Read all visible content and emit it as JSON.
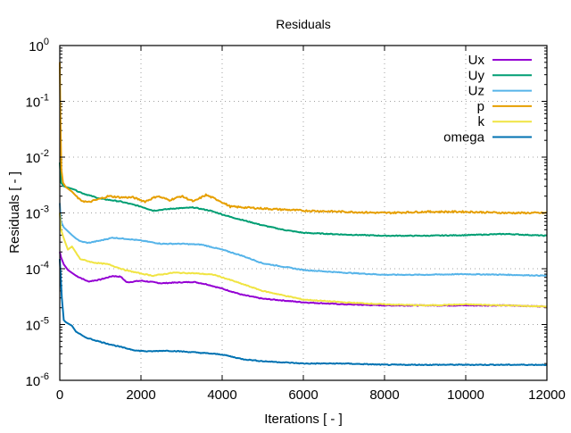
{
  "chart_data": {
    "type": "line",
    "title": "Residuals",
    "xlabel": "Iterations [ - ]",
    "ylabel": "Residuals [ - ]",
    "xlim": [
      0,
      12000
    ],
    "ylim": [
      1e-06,
      1
    ],
    "yscale": "log",
    "grid": true,
    "legend_position": "top-right",
    "x_ticks": [
      {
        "value": 0,
        "label": "0"
      },
      {
        "value": 2000,
        "label": "2000"
      },
      {
        "value": 4000,
        "label": "4000"
      },
      {
        "value": 6000,
        "label": "6000"
      },
      {
        "value": 8000,
        "label": "8000"
      },
      {
        "value": 10000,
        "label": "10000"
      },
      {
        "value": 12000,
        "label": "12000"
      }
    ],
    "y_ticks": [
      {
        "exp": 0,
        "base": "10",
        "sup": "0"
      },
      {
        "exp": -1,
        "base": "10",
        "sup": "-1"
      },
      {
        "exp": -2,
        "base": "10",
        "sup": "-2"
      },
      {
        "exp": -3,
        "base": "10",
        "sup": "-3"
      },
      {
        "exp": -4,
        "base": "10",
        "sup": "-4"
      },
      {
        "exp": -5,
        "base": "10",
        "sup": "-5"
      },
      {
        "exp": -6,
        "base": "10",
        "sup": "-6"
      }
    ],
    "series": [
      {
        "name": "Ux",
        "color": "#9400d3",
        "x": [
          0,
          30,
          100,
          200,
          400,
          700,
          1000,
          1300,
          1500,
          1650,
          2000,
          2500,
          3000,
          3300,
          3600,
          4000,
          4500,
          5000,
          5500,
          6000,
          7000,
          8000,
          9000,
          10000,
          11000,
          12000
        ],
        "y": [
          0.0002,
          0.00016,
          0.00012,
          9.5e-05,
          7.5e-05,
          5.9e-05,
          6.4e-05,
          7.4e-05,
          7.2e-05,
          5.7e-05,
          6.1e-05,
          5.5e-05,
          5.7e-05,
          5.8e-05,
          5.3e-05,
          4.4e-05,
          3.4e-05,
          2.9e-05,
          2.7e-05,
          2.5e-05,
          2.3e-05,
          2.2e-05,
          2.2e-05,
          2.2e-05,
          2.2e-05,
          2.1e-05
        ]
      },
      {
        "name": "Uy",
        "color": "#009e73",
        "x": [
          0,
          30,
          100,
          300,
          600,
          1000,
          1500,
          2000,
          2300,
          2800,
          3300,
          3700,
          4200,
          5000,
          5500,
          6000,
          7000,
          8000,
          9000,
          10000,
          11000,
          12000
        ],
        "y": [
          0.008,
          0.0035,
          0.003,
          0.0027,
          0.0022,
          0.0018,
          0.0016,
          0.0013,
          0.0011,
          0.0012,
          0.00125,
          0.0011,
          0.00085,
          0.0006,
          0.0005,
          0.00044,
          0.00041,
          0.00039,
          0.00039,
          0.0004,
          0.00042,
          0.00039
        ]
      },
      {
        "name": "Uz",
        "color": "#56b4e9",
        "x": [
          0,
          30,
          100,
          300,
          500,
          700,
          1000,
          1300,
          1700,
          2000,
          2500,
          3000,
          3500,
          4000,
          4500,
          5000,
          6000,
          7000,
          8000,
          9000,
          10000,
          11000,
          12000
        ],
        "y": [
          0.0015,
          0.0007,
          0.00055,
          0.0004,
          0.00031,
          0.00029,
          0.00032,
          0.00036,
          0.00034,
          0.00032,
          0.00028,
          0.00028,
          0.00027,
          0.00022,
          0.00017,
          0.000125,
          9.5e-05,
          8.5e-05,
          7.8e-05,
          7.8e-05,
          8e-05,
          7.8e-05,
          7.5e-05
        ]
      },
      {
        "name": "p",
        "color": "#e69f00",
        "x": [
          0,
          15,
          40,
          80,
          150,
          300,
          500,
          700,
          1000,
          1200,
          1500,
          1800,
          2100,
          2400,
          2700,
          3000,
          3300,
          3600,
          3900,
          4200,
          5000,
          6000,
          7000,
          8000,
          9000,
          10000,
          11000,
          12000
        ],
        "y": [
          0.5,
          0.05,
          0.006,
          0.0035,
          0.0029,
          0.0024,
          0.0017,
          0.00155,
          0.0018,
          0.002,
          0.0019,
          0.0019,
          0.0016,
          0.002,
          0.0017,
          0.002,
          0.0016,
          0.0021,
          0.0017,
          0.0013,
          0.0012,
          0.0011,
          0.00105,
          0.001,
          0.00105,
          0.00105,
          0.001,
          0.001
        ]
      },
      {
        "name": "k",
        "color": "#f0e442",
        "x": [
          0,
          30,
          100,
          200,
          300,
          500,
          800,
          1200,
          1600,
          2000,
          2300,
          2800,
          3300,
          3800,
          4200,
          5000,
          6000,
          7000,
          8000,
          9000,
          10000,
          11000,
          12000
        ],
        "y": [
          0.001,
          0.0005,
          0.00035,
          0.00022,
          0.00025,
          0.00015,
          0.00013,
          0.00012,
          9.5e-05,
          8.2e-05,
          7.5e-05,
          8.5e-05,
          8.3e-05,
          7.8e-05,
          6.3e-05,
          4e-05,
          2.8e-05,
          2.5e-05,
          2.3e-05,
          2.2e-05,
          2.3e-05,
          2.2e-05,
          2.1e-05
        ]
      },
      {
        "name": "omega",
        "color": "#0072b2",
        "x": [
          0,
          50,
          100,
          150,
          200,
          300,
          400,
          600,
          800,
          1000,
          1300,
          1600,
          1900,
          2200,
          2600,
          3000,
          3500,
          4000,
          4500,
          5000,
          5500,
          6000,
          7000,
          8000,
          9000,
          10000,
          11000,
          12000
        ],
        "y": [
          0.00015,
          3e-05,
          1.2e-05,
          1.1e-05,
          1.05e-05,
          9.5e-06,
          7.5e-06,
          6e-06,
          5.4e-06,
          4.9e-06,
          4.3e-06,
          3.8e-06,
          3.4e-06,
          3.3e-06,
          3.4e-06,
          3.3e-06,
          3.1e-06,
          2.9e-06,
          2.4e-06,
          2.2e-06,
          2.1e-06,
          2e-06,
          2e-06,
          1.9e-06,
          1.9e-06,
          1.9e-06,
          1.9e-06,
          1.9e-06
        ]
      }
    ]
  }
}
